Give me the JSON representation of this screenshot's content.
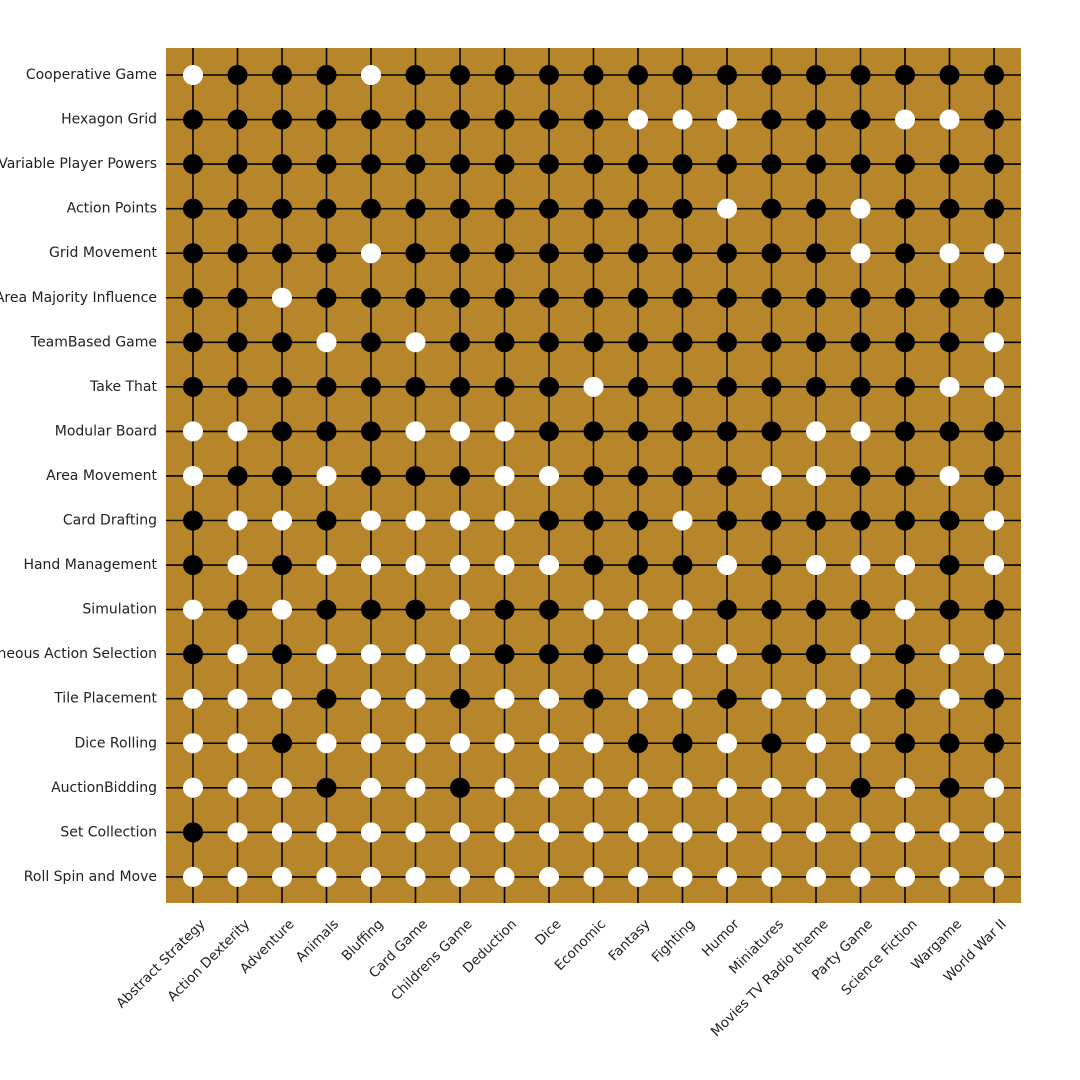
{
  "chart_data": {
    "type": "heatmap",
    "title": "",
    "xlabel": "",
    "ylabel": "",
    "rows": [
      "Cooperative Game",
      "Hexagon Grid",
      "Variable Player Powers",
      "Action Points",
      "Grid Movement",
      "Area Majority  Influence",
      "TeamBased Game",
      "Take That",
      "Modular Board",
      "Area Movement",
      "Card Drafting",
      "Hand Management",
      "Simulation",
      "Simultaneous Action Selection",
      "Tile Placement",
      "Dice Rolling",
      "AuctionBidding",
      "Set Collection",
      "Roll  Spin and Move"
    ],
    "columns": [
      "Abstract Strategy",
      "Action  Dexterity",
      "Adventure",
      "Animals",
      "Bluffing",
      "Card Game",
      "Childrens Game",
      "Deduction",
      "Dice",
      "Economic",
      "Fantasy",
      "Fighting",
      "Humor",
      "Miniatures",
      "Movies TV Radio theme",
      "Party Game",
      "Science Fiction",
      "Wargame",
      "World War II"
    ],
    "values_legend": "1 = black dot, 0 = white dot",
    "values": [
      [
        0,
        1,
        1,
        1,
        0,
        1,
        1,
        1,
        1,
        1,
        1,
        1,
        1,
        1,
        1,
        1,
        1,
        1,
        1
      ],
      [
        1,
        1,
        1,
        1,
        1,
        1,
        1,
        1,
        1,
        1,
        0,
        0,
        0,
        1,
        1,
        1,
        0,
        0,
        1
      ],
      [
        1,
        1,
        1,
        1,
        1,
        1,
        1,
        1,
        1,
        1,
        1,
        1,
        1,
        1,
        1,
        1,
        1,
        1,
        1
      ],
      [
        1,
        1,
        1,
        1,
        1,
        1,
        1,
        1,
        1,
        1,
        1,
        1,
        0,
        1,
        1,
        0,
        1,
        1,
        1
      ],
      [
        1,
        1,
        1,
        1,
        0,
        1,
        1,
        1,
        1,
        1,
        1,
        1,
        1,
        1,
        1,
        0,
        1,
        0,
        0
      ],
      [
        1,
        1,
        0,
        1,
        1,
        1,
        1,
        1,
        1,
        1,
        1,
        1,
        1,
        1,
        1,
        1,
        1,
        1,
        1
      ],
      [
        1,
        1,
        1,
        0,
        1,
        0,
        1,
        1,
        1,
        1,
        1,
        1,
        1,
        1,
        1,
        1,
        1,
        1,
        0
      ],
      [
        1,
        1,
        1,
        1,
        1,
        1,
        1,
        1,
        1,
        0,
        1,
        1,
        1,
        1,
        1,
        1,
        1,
        0,
        0
      ],
      [
        0,
        0,
        1,
        1,
        1,
        0,
        0,
        0,
        1,
        1,
        1,
        1,
        1,
        1,
        0,
        0,
        1,
        1,
        1
      ],
      [
        0,
        1,
        1,
        0,
        1,
        1,
        1,
        0,
        0,
        1,
        1,
        1,
        1,
        0,
        0,
        1,
        1,
        0,
        1
      ],
      [
        1,
        0,
        0,
        1,
        0,
        0,
        0,
        0,
        1,
        1,
        1,
        0,
        1,
        1,
        1,
        1,
        1,
        1,
        0
      ],
      [
        1,
        0,
        1,
        0,
        0,
        0,
        0,
        0,
        0,
        1,
        1,
        1,
        0,
        1,
        0,
        0,
        0,
        1,
        0
      ],
      [
        0,
        1,
        0,
        1,
        1,
        1,
        0,
        1,
        1,
        0,
        0,
        0,
        1,
        1,
        1,
        1,
        0,
        1,
        1
      ],
      [
        1,
        0,
        1,
        0,
        0,
        0,
        0,
        1,
        1,
        1,
        0,
        0,
        0,
        1,
        1,
        0,
        1,
        0,
        0
      ],
      [
        0,
        0,
        0,
        1,
        0,
        0,
        1,
        0,
        0,
        1,
        0,
        0,
        1,
        0,
        0,
        0,
        1,
        0,
        1
      ],
      [
        0,
        0,
        1,
        0,
        0,
        0,
        0,
        0,
        0,
        0,
        1,
        1,
        0,
        1,
        0,
        0,
        1,
        1,
        1
      ],
      [
        0,
        0,
        0,
        1,
        0,
        0,
        1,
        0,
        0,
        0,
        0,
        0,
        0,
        0,
        0,
        1,
        0,
        1,
        0
      ],
      [
        1,
        0,
        0,
        0,
        0,
        0,
        0,
        0,
        0,
        0,
        0,
        0,
        0,
        0,
        0,
        0,
        0,
        0,
        0
      ],
      [
        0,
        0,
        0,
        0,
        0,
        0,
        0,
        0,
        0,
        0,
        0,
        0,
        0,
        0,
        0,
        0,
        0,
        0,
        0
      ]
    ],
    "colors": {
      "board": "#b8862a",
      "grid_line": "#000000",
      "filled_dot": "#000000",
      "empty_dot": "#ffffff"
    },
    "grid": true,
    "legend": "none"
  }
}
